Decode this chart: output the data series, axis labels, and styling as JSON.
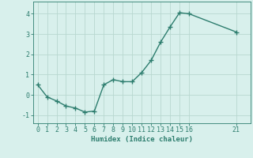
{
  "x": [
    0,
    1,
    2,
    3,
    4,
    5,
    6,
    7,
    8,
    9,
    10,
    11,
    12,
    13,
    14,
    15,
    16,
    21
  ],
  "y": [
    0.5,
    -0.1,
    -0.3,
    -0.55,
    -0.65,
    -0.85,
    -0.8,
    0.5,
    0.75,
    0.65,
    0.65,
    1.1,
    1.7,
    2.6,
    3.35,
    4.05,
    4.0,
    3.1
  ],
  "line_color": "#2d7d6e",
  "marker": "+",
  "marker_size": 4,
  "marker_linewidth": 1.0,
  "background_color": "#d8f0ec",
  "grid_color": "#b8d8d0",
  "axis_bg_color": "#d8f0ec",
  "xlabel": "Humidex (Indice chaleur)",
  "xlabel_fontsize": 6.5,
  "xticks": [
    0,
    1,
    2,
    3,
    4,
    5,
    6,
    7,
    8,
    9,
    10,
    11,
    12,
    13,
    14,
    15,
    16,
    21
  ],
  "yticks": [
    -1,
    0,
    1,
    2,
    3,
    4
  ],
  "ylim": [
    -1.4,
    4.6
  ],
  "xlim": [
    -0.5,
    22.5
  ],
  "tick_color": "#2d7d6e",
  "tick_fontsize": 6,
  "spine_color": "#2d7d6e",
  "linewidth": 1.0
}
